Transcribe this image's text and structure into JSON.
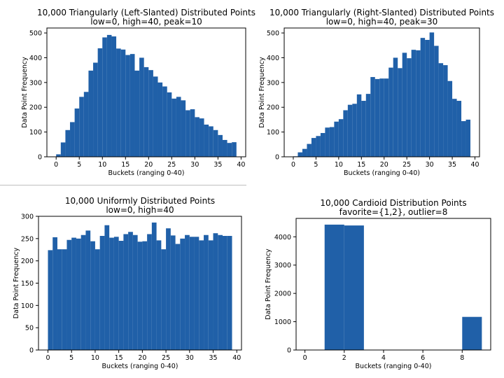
{
  "chart_data": [
    {
      "type": "bar",
      "title": "10,000 Triangularly (Left-Slanted) Distributed Points",
      "subtitle": "low=0, high=40, peak=10",
      "xlabel": "Buckets (ranging 0-40)",
      "ylabel": "Data Point Frequency",
      "xlim": [
        -2,
        41
      ],
      "ylim": [
        0,
        520
      ],
      "xticks": [
        0,
        5,
        10,
        15,
        20,
        25,
        30,
        35,
        40
      ],
      "yticks": [
        0,
        100,
        200,
        300,
        400,
        500
      ],
      "bin_width": 1,
      "x": [
        0,
        1,
        2,
        3,
        4,
        5,
        6,
        7,
        8,
        9,
        10,
        11,
        12,
        13,
        14,
        15,
        16,
        17,
        18,
        19,
        20,
        21,
        22,
        23,
        24,
        25,
        26,
        27,
        28,
        29,
        30,
        31,
        32,
        33,
        34,
        35,
        36,
        37,
        38
      ],
      "values": [
        10,
        58,
        108,
        140,
        195,
        242,
        262,
        348,
        380,
        438,
        482,
        492,
        486,
        437,
        433,
        411,
        415,
        348,
        400,
        362,
        350,
        324,
        300,
        284,
        260,
        235,
        242,
        228,
        188,
        192,
        160,
        155,
        130,
        123,
        108,
        88,
        68,
        56,
        59
      ]
    },
    {
      "type": "bar",
      "title": "10,000 Triangularly (Right-Slanted) Distributed Points",
      "subtitle": "low=0, high=40, peak=30",
      "xlabel": "Buckets (ranging 0-40)",
      "ylabel": "Data Point Frequency",
      "xlim": [
        -2,
        41
      ],
      "ylim": [
        0,
        520
      ],
      "xticks": [
        0,
        5,
        10,
        15,
        20,
        25,
        30,
        35,
        40
      ],
      "yticks": [
        0,
        100,
        200,
        300,
        400,
        500
      ],
      "bin_width": 1,
      "x": [
        0,
        1,
        2,
        3,
        4,
        5,
        6,
        7,
        8,
        9,
        10,
        11,
        12,
        13,
        14,
        15,
        16,
        17,
        18,
        19,
        20,
        21,
        22,
        23,
        24,
        25,
        26,
        27,
        28,
        29,
        30,
        31,
        32,
        33,
        34,
        35,
        36,
        37,
        38
      ],
      "values": [
        2,
        18,
        32,
        52,
        76,
        84,
        96,
        118,
        120,
        142,
        152,
        188,
        210,
        214,
        252,
        226,
        254,
        322,
        314,
        316,
        316,
        360,
        400,
        358,
        420,
        398,
        432,
        430,
        480,
        472,
        502,
        448,
        378,
        370,
        306,
        234,
        226,
        144,
        150
      ]
    },
    {
      "type": "bar",
      "title": "10,000 Uniformly Distributed Points",
      "subtitle": "low=0, high=40",
      "xlabel": "Buckets (ranging 0-40)",
      "ylabel": "Data Point Frequency",
      "xlim": [
        -2,
        41
      ],
      "ylim": [
        0,
        300
      ],
      "xticks": [
        0,
        5,
        10,
        15,
        20,
        25,
        30,
        35,
        40
      ],
      "yticks": [
        0,
        50,
        100,
        150,
        200,
        250,
        300
      ],
      "bin_width": 1,
      "x": [
        0,
        1,
        2,
        3,
        4,
        5,
        6,
        7,
        8,
        9,
        10,
        11,
        12,
        13,
        14,
        15,
        16,
        17,
        18,
        19,
        20,
        21,
        22,
        23,
        24,
        25,
        26,
        27,
        28,
        29,
        30,
        31,
        32,
        33,
        34,
        35,
        36,
        37,
        38
      ],
      "values": [
        224,
        253,
        226,
        226,
        247,
        252,
        250,
        258,
        268,
        244,
        226,
        256,
        280,
        252,
        254,
        245,
        260,
        265,
        258,
        243,
        244,
        260,
        286,
        246,
        226,
        273,
        257,
        238,
        250,
        258,
        254,
        254,
        246,
        258,
        246,
        262,
        258,
        256,
        256
      ]
    },
    {
      "type": "bar",
      "title": "10,000 Cardioid Distribution Points",
      "subtitle": "favorite={1,2}, outlier=8",
      "xlabel": "Buckets (ranging 0-40)",
      "ylabel": "Data Point Frequency",
      "xlim": [
        -0.45,
        9.45
      ],
      "ylim": [
        0,
        4650
      ],
      "xticks": [
        0,
        2,
        4,
        6,
        8
      ],
      "yticks": [
        0,
        1000,
        2000,
        3000,
        4000
      ],
      "bin_width": 1,
      "x": [
        1,
        2,
        8
      ],
      "values": [
        4430,
        4400,
        1170
      ]
    }
  ]
}
